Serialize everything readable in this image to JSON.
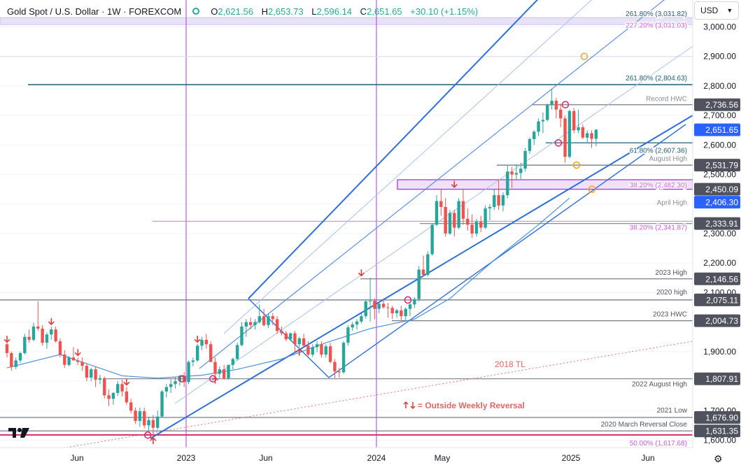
{
  "header": {
    "symbol_label": "Gold Spot / U.S. Dollar · 1W · FOREXCOM",
    "open_label": "O",
    "open": "2,621.56",
    "high_label": "H",
    "high": "2,653.73",
    "low_label": "L",
    "low": "2,596.14",
    "close_label": "C",
    "close": "2,651.65",
    "change": "+30.10 (+1.15%)"
  },
  "currency_button": {
    "label": "USD"
  },
  "colors": {
    "up": "#26a69a",
    "down": "#ef5350",
    "channel": "#2f6fd6",
    "channel_light": "#a8c2ee",
    "sma": "#4a90d9",
    "magenta": "#b03adb",
    "price_badge": "#2962ff",
    "dark_badge": "#50535e",
    "fib_teal": "#1e5f74",
    "trendline": "#e57373",
    "orange_marker": "#f5a623"
  },
  "chart_data": {
    "type": "candlestick",
    "timeframe": "1W",
    "ylim": [
      1585,
      3050
    ],
    "x_tick_labels": [
      "Jun",
      "2023",
      "Jun",
      "2024",
      "May",
      "2025",
      "Jun"
    ],
    "y_tick_labels": [
      "3,000.00",
      "2,900.00",
      "2,800.00",
      "2,700.00",
      "2,600.00",
      "2,500.00",
      "2,400.00",
      "2,300.00",
      "2,200.00",
      "2,100.00",
      "1,900.00",
      "1,800.00",
      "1,700.00",
      "1,600.00"
    ],
    "price_badges": [
      {
        "value": 2736.56,
        "label": "2,736.56",
        "style": "dark"
      },
      {
        "value": 2651.65,
        "label": "2,651.65",
        "style": "blue"
      },
      {
        "value": 2531.79,
        "label": "2,531.79",
        "style": "dark"
      },
      {
        "value": 2450.09,
        "label": "2,450.09",
        "style": "dark"
      },
      {
        "value": 2406.3,
        "label": "2,406.30",
        "style": "blue"
      },
      {
        "value": 2333.91,
        "label": "2,333.91",
        "style": "dark"
      },
      {
        "value": 2146.56,
        "label": "2,146.56",
        "style": "dark"
      },
      {
        "value": 2075.11,
        "label": "2,075.11",
        "style": "dark"
      },
      {
        "value": 2004.73,
        "label": "2,004.73",
        "style": "dark"
      },
      {
        "value": 1807.91,
        "label": "1,807.91",
        "style": "dark"
      },
      {
        "value": 1676.9,
        "label": "1,676.90",
        "style": "dark"
      },
      {
        "value": 1631.35,
        "label": "1,631.35",
        "style": "dark"
      }
    ],
    "level_labels": [
      {
        "value": 3031.82,
        "text": "261.80% (3,031.82)",
        "color": "teal"
      },
      {
        "value": 3031.03,
        "text": "227.20% (3,031.03)",
        "color": "magenta"
      },
      {
        "value": 2804.63,
        "text": "261.80% (2,804.63)",
        "color": "teal"
      },
      {
        "value": 2736.56,
        "text": "Record HWC",
        "color": "gray"
      },
      {
        "value": 2607.36,
        "text": "61.80% (2,607.36)",
        "color": "teal"
      },
      {
        "value": 2531.79,
        "text": "August High",
        "color": "gray"
      },
      {
        "value": 2482.3,
        "text": "38.20% (2,482.30)",
        "color": "magenta"
      },
      {
        "value": 2406.3,
        "text": "April High",
        "color": "gray"
      },
      {
        "value": 2341.87,
        "text": "38.20% (2,341.87)",
        "color": "magenta"
      },
      {
        "value": 2146.56,
        "text": "2023 High",
        "color": "dark"
      },
      {
        "value": 2075.11,
        "text": "2020 high",
        "color": "dark"
      },
      {
        "value": 2004.73,
        "text": "2023 HWC",
        "color": "dark"
      },
      {
        "value": 1807.91,
        "text": "2022 August High",
        "color": "dark"
      },
      {
        "value": 1676.9,
        "text": "2021 Low",
        "color": "dark"
      },
      {
        "value": 1631.35,
        "text": "2020 March Reversal Close",
        "color": "dark"
      },
      {
        "value": 1617.68,
        "text": "50.00% (1,617.68)",
        "color": "magenta"
      }
    ],
    "annotations": [
      {
        "text": "2018 TL",
        "color": "trendline"
      },
      {
        "text": "= Outside Weekly Reversal",
        "color": "trendline"
      }
    ],
    "candles": [
      [
        1925,
        1945,
        1880,
        1895
      ],
      [
        1895,
        1900,
        1835,
        1848
      ],
      [
        1848,
        1880,
        1840,
        1870
      ],
      [
        1870,
        1900,
        1862,
        1895
      ],
      [
        1895,
        1960,
        1890,
        1950
      ],
      [
        1950,
        1975,
        1930,
        1940
      ],
      [
        1940,
        1998,
        1935,
        1985
      ],
      [
        1985,
        2070,
        1970,
        1978
      ],
      [
        1978,
        1990,
        1920,
        1930
      ],
      [
        1930,
        1965,
        1910,
        1958
      ],
      [
        1958,
        1985,
        1940,
        1975
      ],
      [
        1975,
        1985,
        1930,
        1935
      ],
      [
        1935,
        1945,
        1880,
        1890
      ],
      [
        1890,
        1905,
        1845,
        1855
      ],
      [
        1855,
        1885,
        1850,
        1880
      ],
      [
        1880,
        1915,
        1870,
        1870
      ],
      [
        1870,
        1880,
        1855,
        1865
      ],
      [
        1865,
        1880,
        1835,
        1852
      ],
      [
        1852,
        1860,
        1800,
        1812
      ],
      [
        1812,
        1845,
        1800,
        1840
      ],
      [
        1840,
        1850,
        1780,
        1805
      ],
      [
        1805,
        1822,
        1790,
        1810
      ],
      [
        1810,
        1815,
        1742,
        1752
      ],
      [
        1752,
        1772,
        1715,
        1740
      ],
      [
        1740,
        1762,
        1720,
        1760
      ],
      [
        1760,
        1800,
        1750,
        1790
      ],
      [
        1790,
        1805,
        1748,
        1765
      ],
      [
        1765,
        1780,
        1720,
        1728
      ],
      [
        1728,
        1740,
        1690,
        1700
      ],
      [
        1700,
        1710,
        1655,
        1665
      ],
      [
        1665,
        1710,
        1645,
        1698
      ],
      [
        1698,
        1710,
        1640,
        1650
      ],
      [
        1650,
        1680,
        1630,
        1668
      ],
      [
        1668,
        1685,
        1615,
        1642
      ],
      [
        1642,
        1700,
        1635,
        1680
      ],
      [
        1680,
        1770,
        1676,
        1765
      ],
      [
        1765,
        1790,
        1745,
        1780
      ],
      [
        1780,
        1805,
        1760,
        1790
      ],
      [
        1790,
        1815,
        1775,
        1800
      ],
      [
        1800,
        1820,
        1785,
        1818
      ],
      [
        1818,
        1830,
        1780,
        1797
      ],
      [
        1797,
        1870,
        1790,
        1865
      ],
      [
        1865,
        1880,
        1850,
        1870
      ],
      [
        1870,
        1925,
        1865,
        1920
      ],
      [
        1920,
        1950,
        1905,
        1940
      ],
      [
        1940,
        1960,
        1910,
        1925
      ],
      [
        1925,
        1935,
        1865,
        1865
      ],
      [
        1865,
        1880,
        1820,
        1825
      ],
      [
        1825,
        1850,
        1810,
        1840
      ],
      [
        1840,
        1855,
        1805,
        1810
      ],
      [
        1810,
        1855,
        1805,
        1855
      ],
      [
        1855,
        1880,
        1840,
        1875
      ],
      [
        1875,
        1930,
        1870,
        1922
      ],
      [
        1922,
        2000,
        1918,
        1985
      ],
      [
        1985,
        2010,
        1950,
        2000
      ],
      [
        2000,
        2015,
        1975,
        1990
      ],
      [
        1990,
        2010,
        1975,
        2000
      ],
      [
        2000,
        2060,
        1995,
        2020
      ],
      [
        2020,
        2045,
        1985,
        1990
      ],
      [
        1990,
        2030,
        1980,
        2020
      ],
      [
        2020,
        2030,
        1990,
        2010
      ],
      [
        2010,
        2020,
        1960,
        1970
      ],
      [
        1970,
        1985,
        1955,
        1962
      ],
      [
        1962,
        1970,
        1935,
        1942
      ],
      [
        1942,
        1965,
        1935,
        1962
      ],
      [
        1962,
        1970,
        1900,
        1925
      ],
      [
        1925,
        1950,
        1915,
        1945
      ],
      [
        1945,
        1960,
        1915,
        1920
      ],
      [
        1920,
        1935,
        1885,
        1890
      ],
      [
        1890,
        1925,
        1882,
        1915
      ],
      [
        1915,
        1935,
        1898,
        1925
      ],
      [
        1925,
        1935,
        1880,
        1890
      ],
      [
        1890,
        1925,
        1880,
        1918
      ],
      [
        1918,
        1930,
        1860,
        1865
      ],
      [
        1865,
        1875,
        1810,
        1833
      ],
      [
        1833,
        1845,
        1812,
        1830
      ],
      [
        1830,
        1935,
        1825,
        1930
      ],
      [
        1930,
        1990,
        1920,
        1982
      ],
      [
        1982,
        2000,
        1970,
        1992
      ],
      [
        1992,
        2010,
        1975,
        2002
      ],
      [
        2002,
        2030,
        1995,
        2020
      ],
      [
        2020,
        2075,
        2012,
        2070
      ],
      [
        2070,
        2150,
        2002,
        2072
      ],
      [
        2072,
        2080,
        2010,
        2045
      ],
      [
        2045,
        2065,
        2030,
        2062
      ],
      [
        2062,
        2080,
        2045,
        2050
      ],
      [
        2050,
        2065,
        2015,
        2048
      ],
      [
        2048,
        2055,
        2010,
        2030
      ],
      [
        2030,
        2045,
        2015,
        2040
      ],
      [
        2040,
        2055,
        2005,
        2020
      ],
      [
        2020,
        2050,
        2005,
        2045
      ],
      [
        2045,
        2065,
        2020,
        2060
      ],
      [
        2060,
        2085,
        2048,
        2078
      ],
      [
        2078,
        2190,
        2070,
        2178
      ],
      [
        2178,
        2225,
        2155,
        2160
      ],
      [
        2160,
        2240,
        2155,
        2230
      ],
      [
        2230,
        2335,
        2225,
        2330
      ],
      [
        2330,
        2430,
        2325,
        2410
      ],
      [
        2410,
        2450,
        2360,
        2390
      ],
      [
        2390,
        2420,
        2290,
        2300
      ],
      [
        2300,
        2380,
        2295,
        2370
      ],
      [
        2370,
        2380,
        2290,
        2320
      ],
      [
        2320,
        2420,
        2315,
        2410
      ],
      [
        2410,
        2450,
        2330,
        2350
      ],
      [
        2350,
        2385,
        2310,
        2330
      ],
      [
        2330,
        2365,
        2285,
        2300
      ],
      [
        2300,
        2350,
        2290,
        2340
      ],
      [
        2340,
        2360,
        2305,
        2320
      ],
      [
        2320,
        2395,
        2315,
        2385
      ],
      [
        2385,
        2400,
        2345,
        2390
      ],
      [
        2390,
        2450,
        2380,
        2430
      ],
      [
        2430,
        2485,
        2380,
        2395
      ],
      [
        2395,
        2440,
        2375,
        2430
      ],
      [
        2430,
        2530,
        2420,
        2510
      ],
      [
        2510,
        2525,
        2455,
        2500
      ],
      [
        2500,
        2535,
        2485,
        2505
      ],
      [
        2505,
        2540,
        2485,
        2520
      ],
      [
        2520,
        2590,
        2510,
        2580
      ],
      [
        2580,
        2625,
        2570,
        2620
      ],
      [
        2620,
        2650,
        2600,
        2645
      ],
      [
        2645,
        2690,
        2630,
        2680
      ],
      [
        2680,
        2710,
        2640,
        2685
      ],
      [
        2685,
        2740,
        2680,
        2735
      ],
      [
        2735,
        2790,
        2720,
        2750
      ],
      [
        2750,
        2760,
        2690,
        2720
      ],
      [
        2720,
        2740,
        2660,
        2690
      ],
      [
        2690,
        2700,
        2540,
        2560
      ],
      [
        2560,
        2720,
        2555,
        2715
      ],
      [
        2715,
        2725,
        2640,
        2650
      ],
      [
        2650,
        2720,
        2640,
        2660
      ],
      [
        2660,
        2670,
        2620,
        2625
      ],
      [
        2625,
        2650,
        2610,
        2640
      ],
      [
        2640,
        2650,
        2590,
        2621
      ],
      [
        2621,
        2654,
        2596,
        2652
      ]
    ],
    "sma": [
      [
        0,
        1845
      ],
      [
        12,
        1890
      ],
      [
        26,
        1818
      ],
      [
        34,
        1810
      ],
      [
        44,
        1820
      ],
      [
        52,
        1840
      ],
      [
        62,
        1875
      ],
      [
        72,
        1930
      ],
      [
        82,
        1978
      ],
      [
        92,
        2010
      ],
      [
        100,
        2080
      ],
      [
        110,
        2210
      ],
      [
        120,
        2330
      ],
      [
        127,
        2420
      ]
    ]
  }
}
